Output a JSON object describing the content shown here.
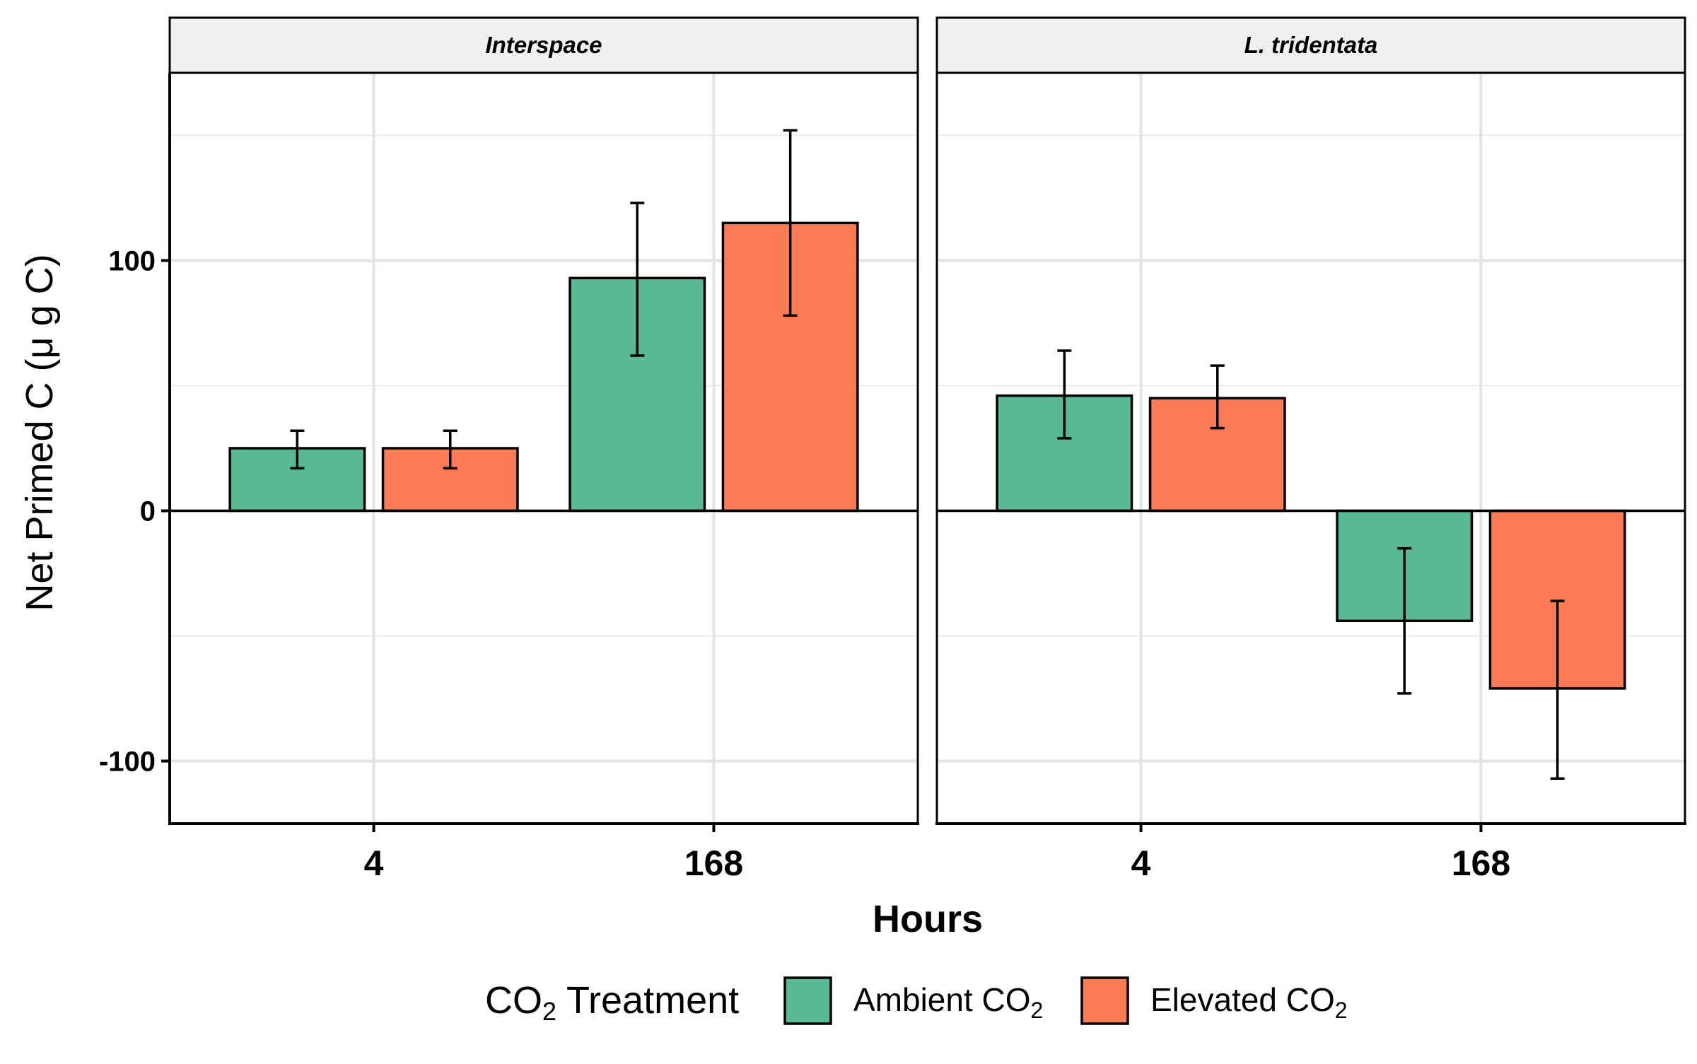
{
  "chart_data": {
    "type": "bar",
    "facets": [
      {
        "strip_label": "Interspace",
        "categories": [
          "4",
          "168"
        ],
        "series": [
          {
            "values": [
              25,
              93
            ],
            "error_low": [
              17,
              62
            ],
            "error_high": [
              32,
              123
            ]
          },
          {
            "values": [
              25,
              115
            ],
            "error_low": [
              17,
              78
            ],
            "error_high": [
              32,
              152
            ]
          }
        ]
      },
      {
        "strip_label": "L. tridentata",
        "categories": [
          "4",
          "168"
        ],
        "series": [
          {
            "values": [
              46,
              -44
            ],
            "error_low": [
              29,
              -73
            ],
            "error_high": [
              64,
              -15
            ]
          },
          {
            "values": [
              45,
              -71
            ],
            "error_low": [
              33,
              -107
            ],
            "error_high": [
              58,
              -36
            ]
          }
        ]
      }
    ],
    "legend_items": [
      {
        "label": "Ambient CO",
        "sub": "2",
        "color": "#58b992"
      },
      {
        "label": "Elevated CO",
        "sub": "2",
        "color": "#fb7b55"
      }
    ],
    "legend_title": {
      "main": "CO",
      "sub": "2",
      "rest": " Treatment"
    },
    "legend_position": "bottom",
    "xlabel": "Hours",
    "ylabel": "Net Primed C (μ g C)",
    "yticks": [
      100,
      0,
      -100
    ],
    "ylim": [
      -125,
      175
    ],
    "grid": true
  }
}
